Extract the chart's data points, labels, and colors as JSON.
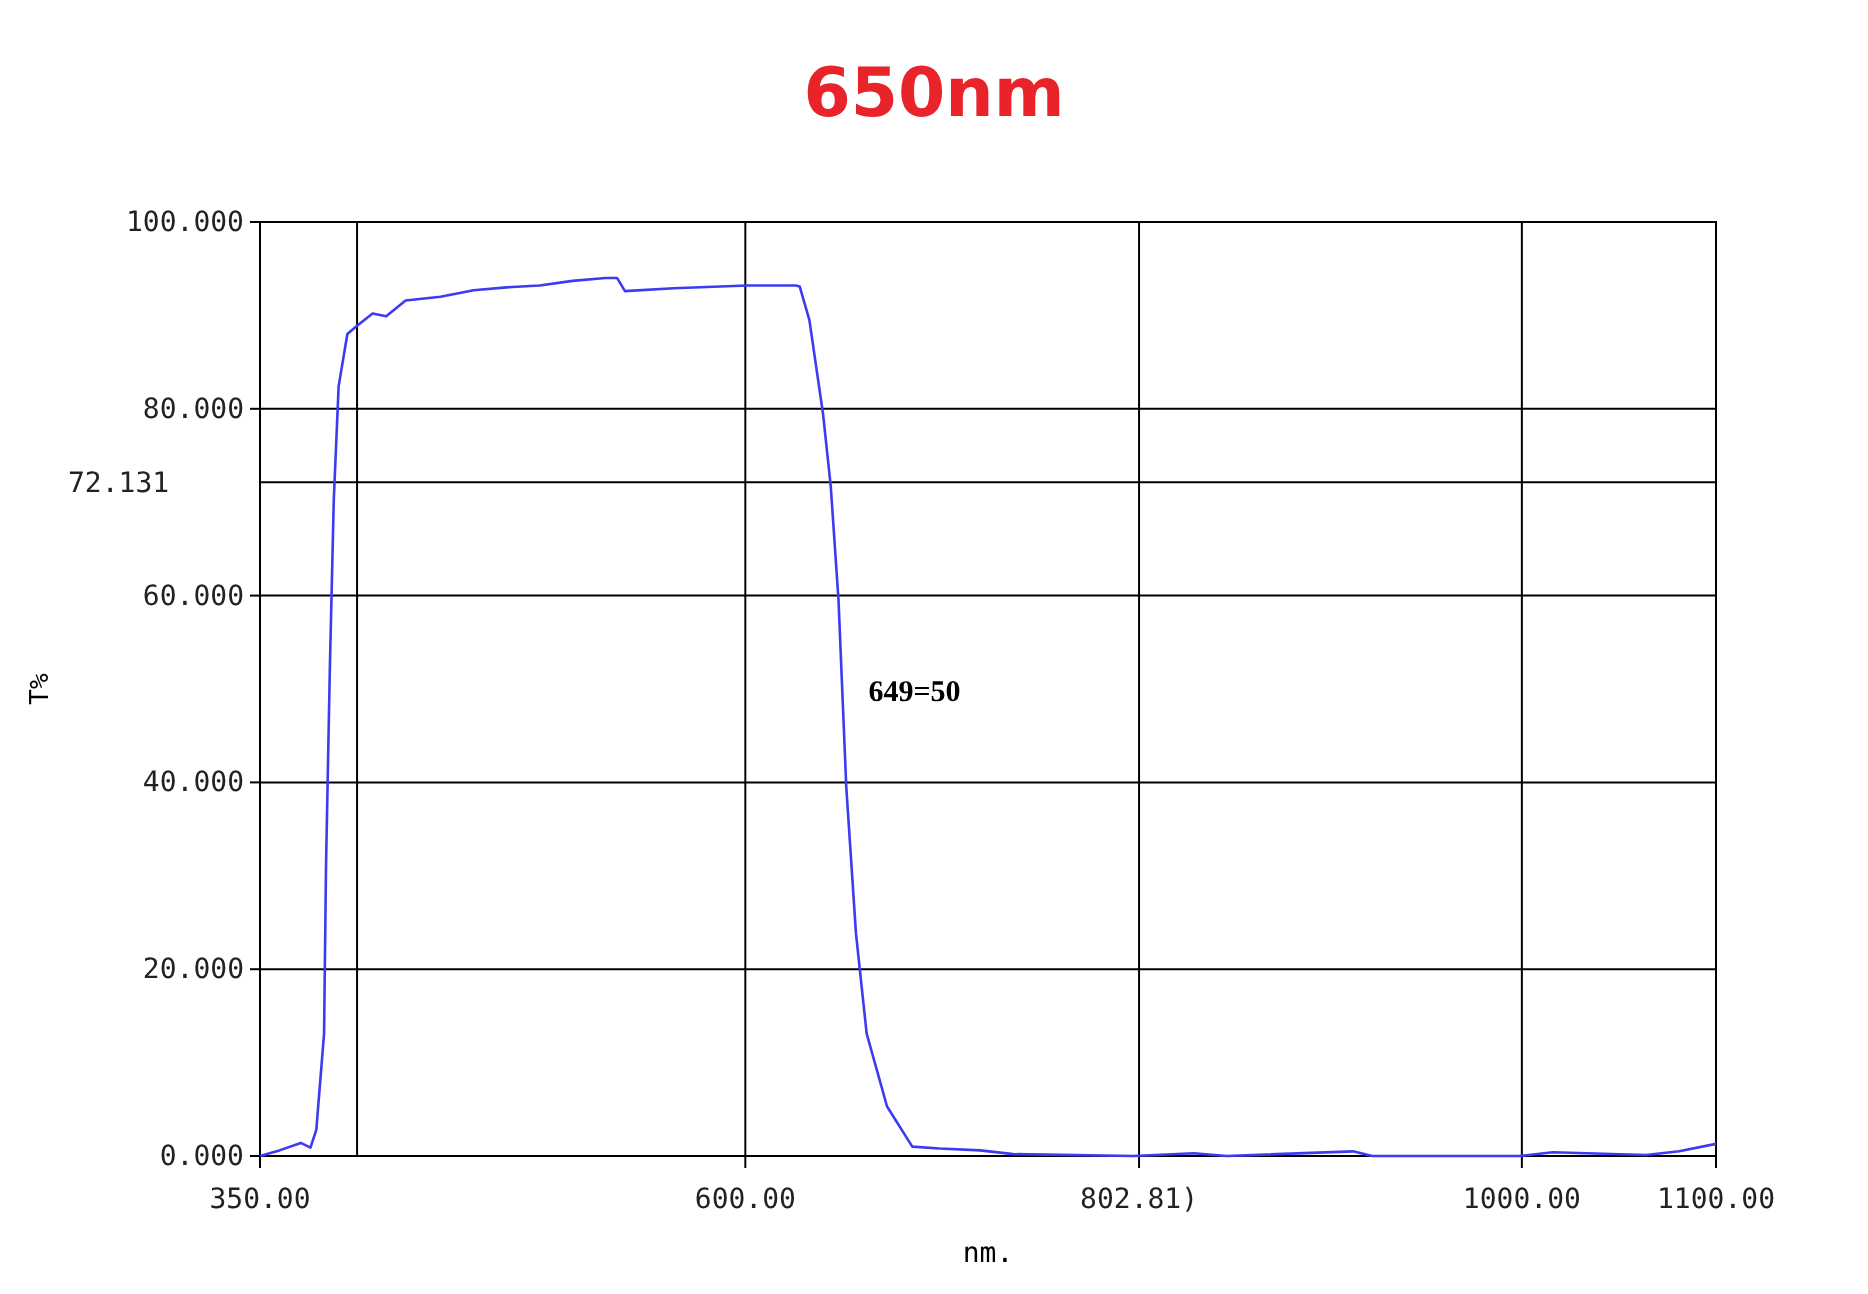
{
  "chart_data": {
    "type": "line",
    "title": "650nm",
    "xlabel": "nm.",
    "ylabel": "T%",
    "xlim": [
      350,
      1100
    ],
    "ylim": [
      0,
      100
    ],
    "xticks": [
      {
        "value": 350,
        "label": "350.00"
      },
      {
        "value": 600,
        "label": "600.00"
      },
      {
        "value": 802.81,
        "label": "802.81)"
      },
      {
        "value": 1000,
        "label": "1000.00"
      },
      {
        "value": 1100,
        "label": "1100.00"
      }
    ],
    "yticks": [
      {
        "value": 0,
        "label": "0.000"
      },
      {
        "value": 20,
        "label": "20.000"
      },
      {
        "value": 40,
        "label": "40.000"
      },
      {
        "value": 60,
        "label": "60.000"
      },
      {
        "value": 80,
        "label": "80.000"
      },
      {
        "value": 100,
        "label": "100.000"
      }
    ],
    "grid": true,
    "marker": "none",
    "line_style": "solid",
    "ref_lines": [
      {
        "axis": "y",
        "value": 72.131,
        "label": "72.131",
        "color": "#000000"
      },
      {
        "axis": "x",
        "value": 400,
        "label": null,
        "color": "#000000"
      }
    ],
    "annotations": [
      {
        "text": "649=50",
        "x": 649,
        "y": 50
      }
    ],
    "series": [
      {
        "color": "#3b3bf0",
        "x": [
          350,
          360,
          371,
          376,
          379,
          383,
          384,
          386,
          388,
          390.5,
          395,
          400,
          408,
          415,
          425,
          443,
          460,
          477,
          494,
          511,
          528,
          534,
          538,
          563,
          601,
          626,
          628,
          633,
          640,
          644,
          648,
          652,
          657,
          662.5,
          673,
          686,
          700,
          721,
          738,
          800,
          831,
          848,
          913,
          923,
          999,
          1016,
          1064,
          1081,
          1100
        ],
        "values": [
          0,
          0.6,
          1.4,
          0.9,
          2.8,
          13.1,
          31,
          52.4,
          70.2,
          82.4,
          88,
          88.9,
          90.2,
          89.9,
          91.6,
          92,
          92.7,
          93,
          93.2,
          93.7,
          94,
          94,
          92.6,
          92.9,
          93.2,
          93.2,
          93.1,
          89.5,
          79.5,
          71.7,
          59.5,
          39.5,
          23.8,
          13.1,
          5.3,
          1,
          0.8,
          0.6,
          0.2,
          0,
          0.3,
          0,
          0.5,
          0,
          0,
          0.4,
          0.1,
          0.5,
          1.3
        ]
      }
    ]
  }
}
